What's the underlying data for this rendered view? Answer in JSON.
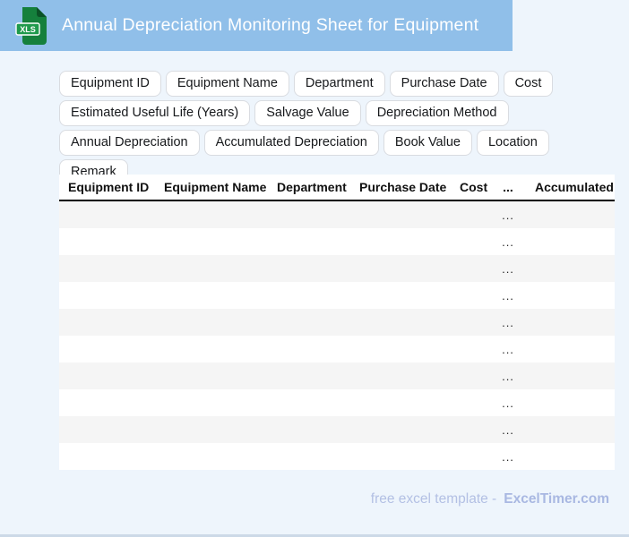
{
  "header": {
    "title": "Annual Depreciation Monitoring Sheet for Equipment",
    "file_badge": "XLS"
  },
  "chips": [
    "Equipment ID",
    "Equipment Name",
    "Department",
    "Purchase Date",
    "Cost",
    "Estimated Useful Life (Years)",
    "Salvage Value",
    "Depreciation Method",
    "Annual Depreciation",
    "Accumulated Depreciation",
    "Book Value",
    "Location",
    "Remark"
  ],
  "table": {
    "columns": [
      "Equipment ID",
      "Equipment Name",
      "Department",
      "Purchase Date",
      "Cost",
      "...",
      "Accumulated Depreciation"
    ],
    "row_count": 10,
    "cell_placeholder": "..."
  },
  "footer": {
    "prefix": "free excel template -",
    "brand": "ExcelTimer.com"
  },
  "colors": {
    "titlebar_bg": "#90bfe9",
    "page_bg": "#eef5fc",
    "stripe": "#f5f5f5",
    "icon_green": "#15803c",
    "icon_band_green": "#1f9a4c",
    "footer_text": "#b3c0e4"
  }
}
